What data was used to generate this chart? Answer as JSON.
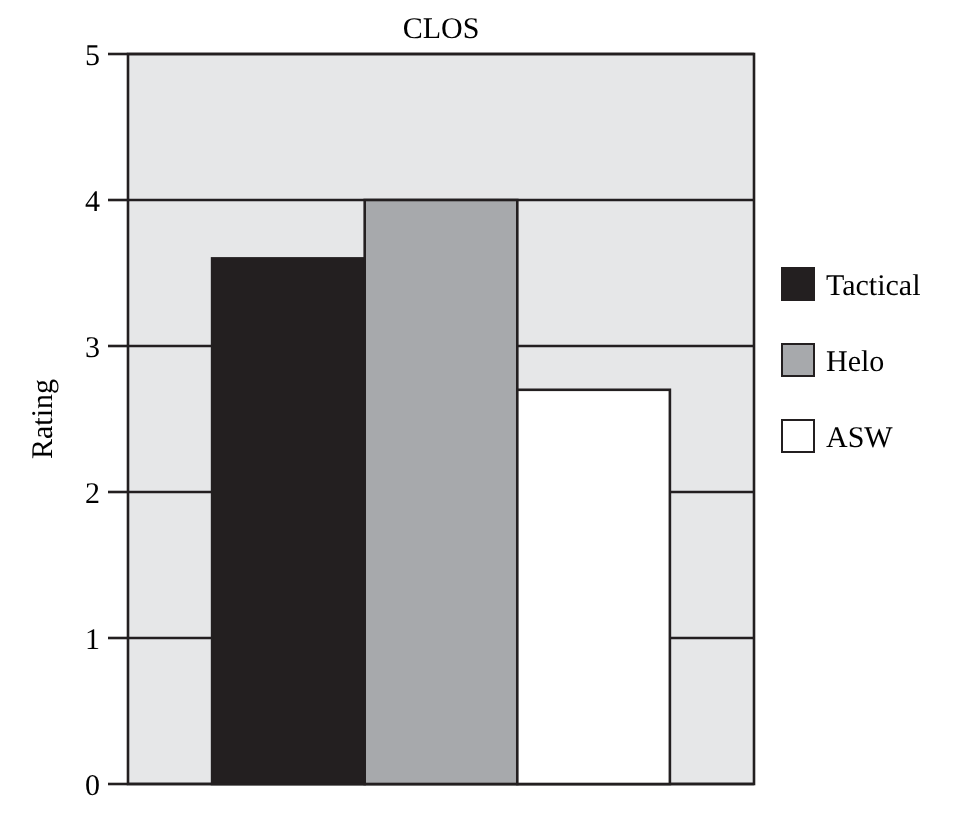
{
  "chart_data": {
    "type": "bar",
    "title": "CLOS",
    "ylabel": "Rating",
    "categories": [
      null
    ],
    "series": [
      {
        "name": "Tactical",
        "color": "#231f20",
        "values": [
          3.6
        ]
      },
      {
        "name": "Helo",
        "color": "#a7a9ac",
        "values": [
          4
        ]
      },
      {
        "name": "ASW",
        "color": "#ffffff",
        "values": [
          2.7
        ]
      }
    ],
    "ylim": [
      0,
      5
    ],
    "yticks": [
      0,
      1,
      2,
      3,
      4,
      5
    ],
    "grid": "y",
    "legend": "right"
  }
}
